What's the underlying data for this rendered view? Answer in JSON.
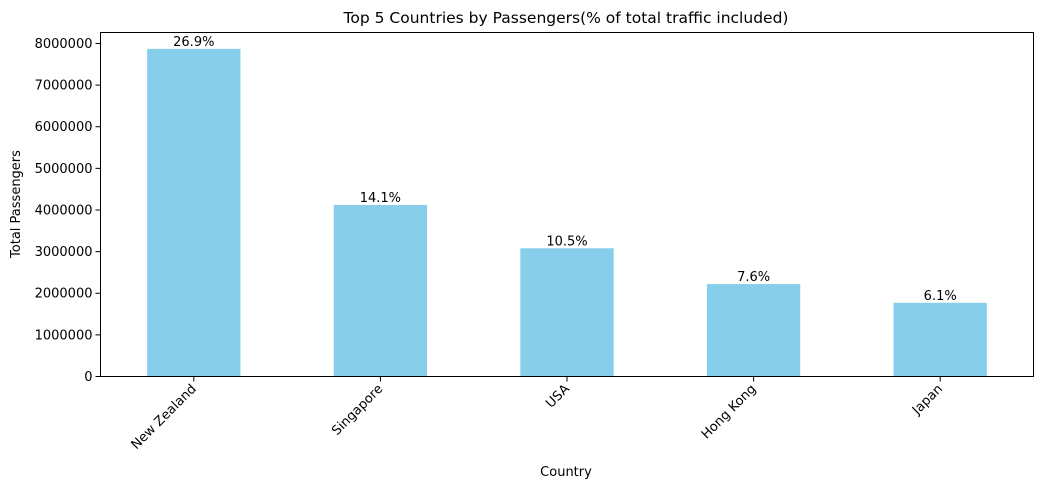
{
  "chart_data": {
    "type": "bar",
    "title": "Top 5 Countries by Passengers(% of total traffic included)",
    "xlabel": "Country",
    "ylabel": "Total Passengers",
    "categories": [
      "New Zealand",
      "Singapore",
      "USA",
      "Hong Kong",
      "Japan"
    ],
    "values": [
      7870000,
      4120000,
      3080000,
      2220000,
      1770000
    ],
    "data_labels": [
      "26.9%",
      "14.1%",
      "10.5%",
      "7.6%",
      "6.1%"
    ],
    "yticks": [
      0,
      1000000,
      2000000,
      3000000,
      4000000,
      5000000,
      6000000,
      7000000,
      8000000
    ],
    "ytick_labels": [
      "0",
      "1000000",
      "2000000",
      "3000000",
      "4000000",
      "5000000",
      "6000000",
      "7000000",
      "8000000"
    ],
    "ylim": [
      0,
      8263500
    ],
    "bar_color": "#87ceeb",
    "grid": false,
    "legend": "none"
  }
}
